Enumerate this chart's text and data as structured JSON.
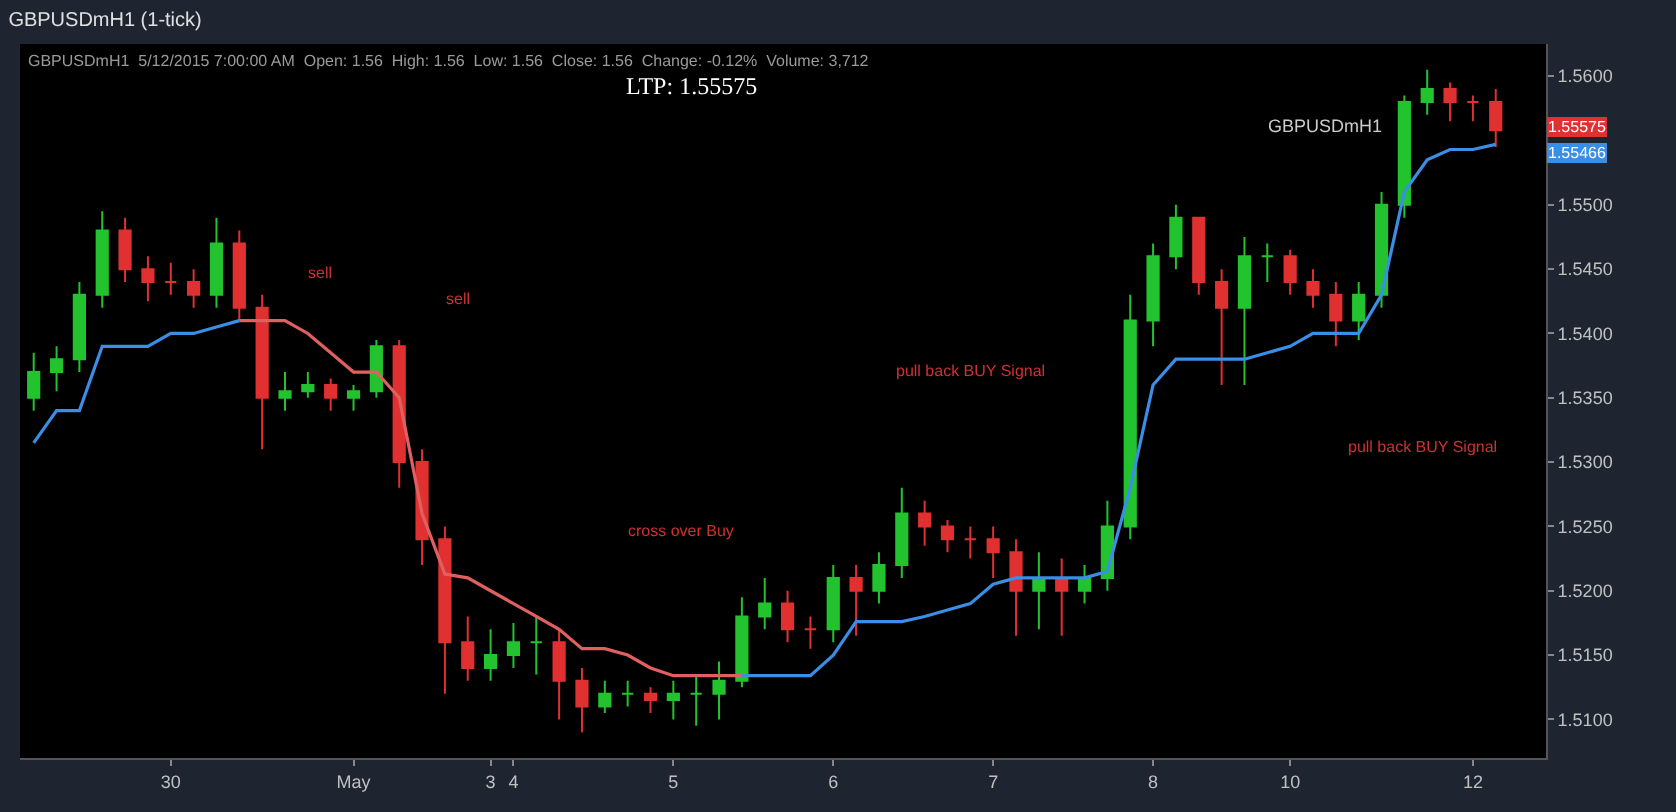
{
  "chart_data": {
    "type": "candlestick",
    "title": "GBPUSDmH1 (1-tick)",
    "categories": [
      null,
      null,
      null,
      null,
      null,
      null,
      "30",
      null,
      null,
      null,
      null,
      null,
      null,
      null,
      "May",
      null,
      null,
      null,
      null,
      null,
      "3",
      "4",
      null,
      null,
      null,
      null,
      null,
      null,
      "5",
      null,
      null,
      null,
      null,
      null,
      null,
      "6",
      null,
      null,
      null,
      null,
      null,
      null,
      "7",
      null,
      null,
      null,
      null,
      null,
      null,
      "8",
      null,
      null,
      null,
      null,
      null,
      "10",
      null,
      null,
      null,
      null,
      null,
      null,
      null,
      "12",
      null
    ],
    "ohlc": [
      [
        1.535,
        1.5385,
        1.534,
        1.537
      ],
      [
        1.537,
        1.539,
        1.5355,
        1.538
      ],
      [
        1.538,
        1.544,
        1.537,
        1.543
      ],
      [
        1.543,
        1.5495,
        1.542,
        1.548
      ],
      [
        1.548,
        1.549,
        1.544,
        1.545
      ],
      [
        1.545,
        1.546,
        1.5425,
        1.544
      ],
      [
        1.544,
        1.5455,
        1.543,
        1.544
      ],
      [
        1.544,
        1.545,
        1.542,
        1.543
      ],
      [
        1.543,
        1.549,
        1.542,
        1.547
      ],
      [
        1.547,
        1.548,
        1.541,
        1.542
      ],
      [
        1.542,
        1.543,
        1.531,
        1.535
      ],
      [
        1.535,
        1.537,
        1.534,
        1.5355
      ],
      [
        1.5355,
        1.537,
        1.535,
        1.536
      ],
      [
        1.536,
        1.5365,
        1.534,
        1.535
      ],
      [
        1.535,
        1.536,
        1.534,
        1.5355
      ],
      [
        1.5355,
        1.5395,
        1.535,
        1.539
      ],
      [
        1.539,
        1.5395,
        1.528,
        1.53
      ],
      [
        1.53,
        1.531,
        1.522,
        1.524
      ],
      [
        1.524,
        1.525,
        1.512,
        1.516
      ],
      [
        1.516,
        1.518,
        1.513,
        1.514
      ],
      [
        1.514,
        1.517,
        1.513,
        1.515
      ],
      [
        1.515,
        1.5175,
        1.514,
        1.516
      ],
      [
        1.516,
        1.518,
        1.5135,
        1.516
      ],
      [
        1.516,
        1.517,
        1.51,
        1.513
      ],
      [
        1.513,
        1.514,
        1.509,
        1.511
      ],
      [
        1.511,
        1.513,
        1.5105,
        1.512
      ],
      [
        1.512,
        1.513,
        1.511,
        1.512
      ],
      [
        1.512,
        1.5125,
        1.5105,
        1.5115
      ],
      [
        1.5115,
        1.513,
        1.51,
        1.512
      ],
      [
        1.512,
        1.5135,
        1.5095,
        1.512
      ],
      [
        1.512,
        1.5145,
        1.51,
        1.513
      ],
      [
        1.513,
        1.5195,
        1.5125,
        1.518
      ],
      [
        1.518,
        1.521,
        1.517,
        1.519
      ],
      [
        1.519,
        1.52,
        1.516,
        1.517
      ],
      [
        1.517,
        1.518,
        1.5155,
        1.517
      ],
      [
        1.517,
        1.522,
        1.516,
        1.521
      ],
      [
        1.521,
        1.522,
        1.5165,
        1.52
      ],
      [
        1.52,
        1.523,
        1.519,
        1.522
      ],
      [
        1.522,
        1.528,
        1.521,
        1.526
      ],
      [
        1.526,
        1.527,
        1.5235,
        1.525
      ],
      [
        1.525,
        1.5255,
        1.523,
        1.524
      ],
      [
        1.524,
        1.525,
        1.5225,
        1.524
      ],
      [
        1.524,
        1.525,
        1.521,
        1.523
      ],
      [
        1.523,
        1.524,
        1.5165,
        1.52
      ],
      [
        1.52,
        1.523,
        1.517,
        1.521
      ],
      [
        1.521,
        1.5225,
        1.5165,
        1.52
      ],
      [
        1.52,
        1.522,
        1.519,
        1.521
      ],
      [
        1.521,
        1.527,
        1.52,
        1.525
      ],
      [
        1.525,
        1.543,
        1.524,
        1.541
      ],
      [
        1.541,
        1.547,
        1.539,
        1.546
      ],
      [
        1.546,
        1.55,
        1.545,
        1.549
      ],
      [
        1.549,
        1.549,
        1.543,
        1.544
      ],
      [
        1.544,
        1.545,
        1.536,
        1.542
      ],
      [
        1.542,
        1.5475,
        1.536,
        1.546
      ],
      [
        1.546,
        1.547,
        1.544,
        1.546
      ],
      [
        1.546,
        1.5465,
        1.543,
        1.544
      ],
      [
        1.544,
        1.545,
        1.542,
        1.543
      ],
      [
        1.543,
        1.544,
        1.539,
        1.541
      ],
      [
        1.541,
        1.544,
        1.5395,
        1.543
      ],
      [
        1.543,
        1.551,
        1.542,
        1.55
      ],
      [
        1.55,
        1.5585,
        1.549,
        1.558
      ],
      [
        1.558,
        1.5605,
        1.557,
        1.559
      ],
      [
        1.559,
        1.5595,
        1.5565,
        1.558
      ],
      [
        1.558,
        1.5585,
        1.5565,
        1.558
      ],
      [
        1.558,
        1.559,
        1.5545,
        1.5558
      ]
    ],
    "series": [
      {
        "type": "line",
        "color": "#3a8ee6",
        "values": [
          1.5315,
          1.534,
          1.534,
          1.539,
          1.539,
          1.539,
          1.54,
          1.54,
          1.5405,
          1.541,
          null,
          null,
          null,
          null,
          null,
          null,
          null,
          null,
          null,
          null,
          null,
          null,
          null,
          null,
          null,
          null,
          null,
          null,
          null,
          null,
          null,
          1.5134,
          1.5134,
          1.5134,
          1.5134,
          1.515,
          1.5176,
          1.5176,
          1.5176,
          1.518,
          1.5185,
          1.519,
          1.5205,
          1.521,
          1.521,
          1.521,
          1.521,
          1.5215,
          1.528,
          1.536,
          1.538,
          1.538,
          1.538,
          1.538,
          1.5385,
          1.539,
          1.54,
          1.54,
          1.54,
          1.543,
          1.551,
          1.5535,
          1.5543,
          1.5543,
          1.5547
        ]
      },
      {
        "type": "line",
        "color": "#e06060",
        "values": [
          null,
          null,
          null,
          null,
          null,
          null,
          null,
          null,
          null,
          1.541,
          1.541,
          1.541,
          1.54,
          1.5385,
          1.537,
          1.537,
          1.535,
          1.526,
          1.5213,
          1.521,
          1.52,
          1.519,
          1.518,
          1.517,
          1.5155,
          1.5155,
          1.515,
          1.514,
          1.5134,
          1.5134,
          1.5134,
          1.5134,
          null,
          null,
          null,
          null,
          null,
          null,
          null,
          null,
          null,
          null,
          null,
          null,
          null,
          null,
          null,
          null,
          null,
          null,
          null,
          null,
          null,
          null,
          null,
          null,
          null,
          null,
          null,
          null,
          null,
          null,
          null,
          null,
          null
        ]
      }
    ],
    "ylim": [
      1.507,
      1.5625
    ],
    "yticks": [
      {
        "value": 1.51,
        "label": "1.5100"
      },
      {
        "value": 1.515,
        "label": "1.5150"
      },
      {
        "value": 1.52,
        "label": "1.5200"
      },
      {
        "value": 1.525,
        "label": "1.5250"
      },
      {
        "value": 1.53,
        "label": "1.5300"
      },
      {
        "value": 1.535,
        "label": "1.5350"
      },
      {
        "value": 1.54,
        "label": "1.5400"
      },
      {
        "value": 1.545,
        "label": "1.5450"
      },
      {
        "value": 1.55,
        "label": "1.5500"
      },
      {
        "value": 1.56,
        "label": "1.5600"
      }
    ],
    "annotations": [
      "GBPUSDmH1  5/12/2015 7:00:00 AM  Open: 1.56  High: 1.56  Low: 1.56  Close: 1.56  Change: -0.12%  Volume: 3,712",
      "LTP: 1.55575",
      "sell",
      "sell",
      "cross over Buy",
      "pull back BUY Signal",
      "pull back BUY Signal",
      "GBPUSDmH1",
      "1.55575",
      "1.55466"
    ],
    "grid": false
  }
}
